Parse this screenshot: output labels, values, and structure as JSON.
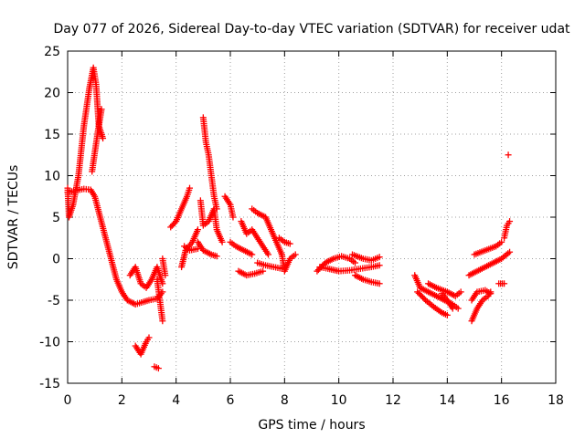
{
  "chart_data": {
    "type": "scatter",
    "title": "Day 077 of 2026, Sidereal Day-to-day VTEC variation (SDTVAR) for receiver udat",
    "xlabel": "GPS time / hours",
    "ylabel": "SDTVAR / TECUs",
    "xlim": [
      0,
      18
    ],
    "ylim": [
      -15,
      25
    ],
    "xticks": [
      "0",
      "2",
      "4",
      "6",
      "8",
      "10",
      "12",
      "14",
      "16",
      "18"
    ],
    "yticks": [
      "-15",
      "-10",
      "-5",
      "0",
      "5",
      "10",
      "15",
      "20",
      "25"
    ],
    "grid": true,
    "marker": "plus",
    "marker_color": "#ff0000",
    "series": [
      {
        "name": "SDTVAR",
        "segments": [
          [
            [
              0.0,
              8.5
            ],
            [
              0.05,
              5.0
            ],
            [
              0.2,
              6.5
            ],
            [
              0.4,
              10.0
            ],
            [
              0.6,
              16.0
            ],
            [
              0.8,
              20.5
            ],
            [
              0.95,
              23.0
            ],
            [
              1.05,
              21.0
            ],
            [
              1.15,
              16.0
            ],
            [
              1.3,
              14.5
            ]
          ],
          [
            [
              0.0,
              8.0
            ],
            [
              0.3,
              8.2
            ],
            [
              0.6,
              8.4
            ],
            [
              0.85,
              8.3
            ],
            [
              1.0,
              7.5
            ],
            [
              1.2,
              5.0
            ],
            [
              1.4,
              2.5
            ],
            [
              1.6,
              0.0
            ],
            [
              1.8,
              -2.5
            ],
            [
              2.0,
              -4.0
            ],
            [
              2.2,
              -5.0
            ],
            [
              2.5,
              -5.5
            ],
            [
              2.8,
              -5.2
            ],
            [
              3.0,
              -5.0
            ],
            [
              3.3,
              -4.8
            ],
            [
              3.5,
              -4.0
            ]
          ],
          [
            [
              0.9,
              10.5
            ],
            [
              1.1,
              15.0
            ],
            [
              1.25,
              18.0
            ]
          ],
          [
            [
              2.3,
              -2.0
            ],
            [
              2.5,
              -1.0
            ],
            [
              2.7,
              -3.0
            ],
            [
              2.9,
              -3.5
            ],
            [
              3.1,
              -2.5
            ],
            [
              3.3,
              -1.0
            ],
            [
              3.5,
              -3.0
            ]
          ],
          [
            [
              2.5,
              -10.5
            ],
            [
              2.7,
              -11.5
            ],
            [
              2.9,
              -10.0
            ],
            [
              3.0,
              -9.5
            ]
          ],
          [
            [
              3.2,
              -13.0
            ],
            [
              3.35,
              -13.2
            ]
          ],
          [
            [
              3.3,
              -2.5
            ],
            [
              3.4,
              -5.0
            ],
            [
              3.5,
              -7.5
            ]
          ],
          [
            [
              3.6,
              -2.0
            ],
            [
              3.5,
              0.0
            ]
          ],
          [
            [
              3.8,
              3.8
            ],
            [
              4.0,
              4.5
            ],
            [
              4.2,
              6.0
            ],
            [
              4.4,
              7.5
            ],
            [
              4.5,
              8.5
            ]
          ],
          [
            [
              4.2,
              -1.0
            ],
            [
              4.35,
              1.0
            ],
            [
              4.6,
              2.0
            ],
            [
              4.8,
              3.5
            ]
          ],
          [
            [
              4.3,
              1.5
            ],
            [
              4.5,
              1.0
            ],
            [
              4.8,
              1.2
            ]
          ],
          [
            [
              5.0,
              17.0
            ],
            [
              5.1,
              14.0
            ],
            [
              5.2,
              12.5
            ],
            [
              5.3,
              10.0
            ],
            [
              5.4,
              7.5
            ],
            [
              5.5,
              6.0
            ]
          ],
          [
            [
              4.9,
              7.0
            ],
            [
              5.0,
              4.0
            ],
            [
              5.2,
              4.5
            ],
            [
              5.4,
              6.0
            ],
            [
              5.5,
              3.5
            ],
            [
              5.7,
              2.0
            ]
          ],
          [
            [
              4.8,
              2.0
            ],
            [
              5.0,
              1.0
            ],
            [
              5.3,
              0.5
            ],
            [
              5.5,
              0.3
            ]
          ],
          [
            [
              5.8,
              7.5
            ],
            [
              6.0,
              6.5
            ],
            [
              6.1,
              5.0
            ]
          ],
          [
            [
              6.0,
              2.0
            ],
            [
              6.2,
              1.5
            ],
            [
              6.5,
              1.0
            ],
            [
              6.8,
              0.5
            ]
          ],
          [
            [
              6.3,
              -1.5
            ],
            [
              6.6,
              -2.0
            ],
            [
              6.9,
              -1.8
            ],
            [
              7.2,
              -1.5
            ]
          ],
          [
            [
              6.4,
              4.5
            ],
            [
              6.6,
              3.0
            ],
            [
              6.8,
              3.5
            ],
            [
              7.0,
              2.5
            ],
            [
              7.2,
              1.5
            ],
            [
              7.4,
              0.5
            ]
          ],
          [
            [
              6.8,
              6.0
            ],
            [
              7.0,
              5.5
            ],
            [
              7.3,
              5.0
            ],
            [
              7.5,
              3.5
            ],
            [
              7.7,
              2.0
            ],
            [
              7.9,
              0.5
            ]
          ],
          [
            [
              7.0,
              -0.5
            ],
            [
              7.3,
              -0.8
            ],
            [
              7.6,
              -1.0
            ],
            [
              7.9,
              -1.2
            ]
          ],
          [
            [
              7.8,
              2.5
            ],
            [
              8.0,
              2.0
            ],
            [
              8.2,
              1.8
            ]
          ],
          [
            [
              7.9,
              0.5
            ],
            [
              8.0,
              -1.5
            ],
            [
              8.2,
              0.0
            ],
            [
              8.4,
              0.5
            ]
          ],
          [
            [
              9.2,
              -1.5
            ],
            [
              9.5,
              -0.5
            ],
            [
              9.8,
              0.0
            ],
            [
              10.1,
              0.3
            ],
            [
              10.4,
              0.0
            ],
            [
              10.6,
              -0.5
            ]
          ],
          [
            [
              9.3,
              -1.0
            ],
            [
              9.6,
              -1.2
            ],
            [
              10.0,
              -1.5
            ],
            [
              10.4,
              -1.4
            ],
            [
              10.8,
              -1.2
            ],
            [
              11.2,
              -1.0
            ],
            [
              11.5,
              -0.8
            ]
          ],
          [
            [
              10.6,
              -2.0
            ],
            [
              10.9,
              -2.5
            ],
            [
              11.2,
              -2.8
            ],
            [
              11.5,
              -3.0
            ]
          ],
          [
            [
              10.5,
              0.5
            ],
            [
              10.9,
              0.0
            ],
            [
              11.2,
              -0.2
            ],
            [
              11.5,
              0.2
            ]
          ],
          [
            [
              12.8,
              -2.0
            ],
            [
              13.0,
              -3.5
            ],
            [
              13.3,
              -4.0
            ],
            [
              13.6,
              -4.5
            ],
            [
              13.9,
              -5.0
            ],
            [
              14.2,
              -5.5
            ],
            [
              14.4,
              -6.0
            ]
          ],
          [
            [
              12.9,
              -4.0
            ],
            [
              13.2,
              -5.0
            ],
            [
              13.5,
              -5.8
            ],
            [
              13.8,
              -6.5
            ],
            [
              14.0,
              -6.8
            ]
          ],
          [
            [
              13.3,
              -3.0
            ],
            [
              13.6,
              -3.5
            ],
            [
              14.0,
              -4.0
            ],
            [
              14.3,
              -4.5
            ],
            [
              14.5,
              -4.0
            ]
          ],
          [
            [
              13.8,
              -4.2
            ],
            [
              14.0,
              -5.0
            ],
            [
              14.2,
              -6.0
            ]
          ],
          [
            [
              14.9,
              -7.5
            ],
            [
              15.1,
              -6.0
            ],
            [
              15.3,
              -5.0
            ],
            [
              15.5,
              -4.5
            ],
            [
              15.6,
              -4.0
            ]
          ],
          [
            [
              14.9,
              -5.0
            ],
            [
              15.1,
              -4.0
            ],
            [
              15.4,
              -3.8
            ],
            [
              15.6,
              -4.2
            ]
          ],
          [
            [
              14.8,
              -2.0
            ],
            [
              15.1,
              -1.5
            ],
            [
              15.4,
              -1.0
            ],
            [
              15.7,
              -0.5
            ],
            [
              16.0,
              0.0
            ],
            [
              16.3,
              0.8
            ]
          ],
          [
            [
              15.0,
              0.5
            ],
            [
              15.4,
              1.0
            ],
            [
              15.8,
              1.5
            ],
            [
              16.0,
              2.0
            ]
          ],
          [
            [
              15.9,
              -3.0
            ],
            [
              16.1,
              -3.0
            ]
          ],
          [
            [
              16.1,
              2.5
            ],
            [
              16.2,
              4.0
            ],
            [
              16.3,
              4.5
            ]
          ],
          [
            [
              16.25,
              12.5
            ]
          ]
        ]
      }
    ]
  }
}
